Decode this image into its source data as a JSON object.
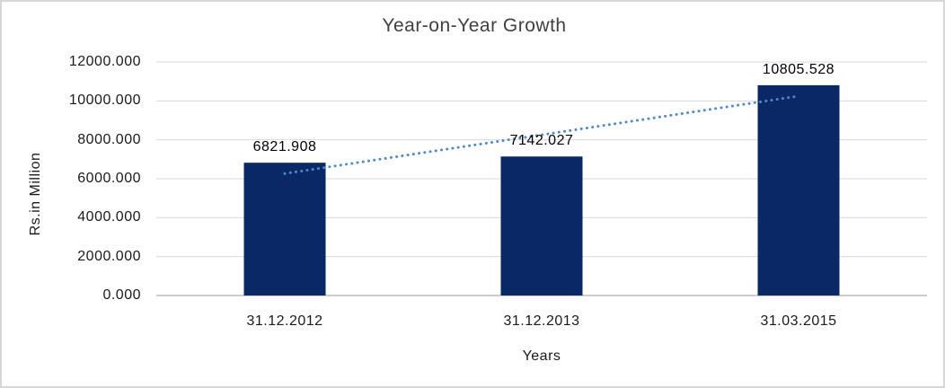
{
  "chart_data": {
    "type": "bar",
    "title": "Year-on-Year Growth",
    "xlabel": "Years",
    "ylabel": "Rs.in Million",
    "categories": [
      "31.12.2012",
      "31.12.2013",
      "31.03.2015"
    ],
    "values": [
      6821.908,
      7142.027,
      10805.528
    ],
    "data_labels": [
      "6821.908",
      "7142.027",
      "10805.528"
    ],
    "ylim": [
      0,
      12000
    ],
    "ytick_step": 2000,
    "ytick_labels": [
      "0.000",
      "2000.000",
      "4000.000",
      "6000.000",
      "8000.000",
      "10000.000",
      "12000.000"
    ],
    "grid": "horizontal-only",
    "legend": "none",
    "trendline": {
      "type": "linear",
      "style": "dotted"
    },
    "colors": {
      "bar": "#0a2866",
      "trendline": "#4e89cc",
      "gridline": "#d9d9d9",
      "axis_line": "#cccccc",
      "text": "#1a1a1a",
      "frame_border": "#d6d6d6",
      "background": "#ffffff"
    }
  }
}
